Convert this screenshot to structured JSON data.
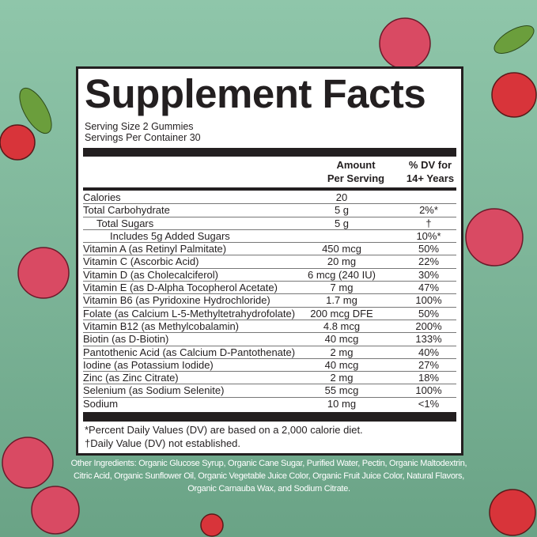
{
  "label": {
    "title": "Supplement Facts",
    "serving_size": "Serving Size 2 Gummies",
    "servings_per_container": "Servings Per Container 30",
    "header": {
      "amount": "Amount",
      "per_serving": "Per Serving",
      "dv": "% DV for",
      "years": "14+ Years"
    },
    "rows": [
      {
        "name": "Calories",
        "amount": "20",
        "dv": ""
      },
      {
        "name": "Total Carbohydrate",
        "amount": "5 g",
        "dv": "2%*"
      },
      {
        "name": "Total Sugars",
        "amount": "5 g",
        "dv": "†",
        "indent": 1
      },
      {
        "name": "Includes 5g Added Sugars",
        "amount": "",
        "dv": "10%*",
        "indent": 2
      },
      {
        "name": "Vitamin A (as Retinyl Palmitate)",
        "amount": "450 mcg",
        "dv": "50%"
      },
      {
        "name": "Vitamin C (Ascorbic Acid)",
        "amount": "20 mg",
        "dv": "22%"
      },
      {
        "name": "Vitamin D (as Cholecalciferol)",
        "amount": "6 mcg (240 IU)",
        "dv": "30%"
      },
      {
        "name": "Vitamin E (as D-Alpha Tocopherol Acetate)",
        "amount": "7 mg",
        "dv": "47%"
      },
      {
        "name": "Vitamin B6 (as Pyridoxine Hydrochloride)",
        "amount": "1.7 mg",
        "dv": "100%"
      },
      {
        "name": "Folate (as Calcium L-5-Methyltetrahydrofolate)",
        "amount": "200 mcg DFE",
        "dv": "50%"
      },
      {
        "name": "Vitamin B12 (as Methylcobalamin)",
        "amount": "4.8 mcg",
        "dv": "200%"
      },
      {
        "name": "Biotin (as D-Biotin)",
        "amount": "40 mcg",
        "dv": "133%"
      },
      {
        "name": "Pantothenic Acid (as Calcium D-Pantothenate)",
        "amount": "2 mg",
        "dv": "40%"
      },
      {
        "name": "Iodine (as Potassium Iodide)",
        "amount": "40 mcg",
        "dv": "27%"
      },
      {
        "name": "Zinc (as Zinc Citrate)",
        "amount": "2 mg",
        "dv": "18%"
      },
      {
        "name": "Selenium (as Sodium Selenite)",
        "amount": "55 mcg",
        "dv": "100%"
      },
      {
        "name": "Sodium",
        "amount": "10 mg",
        "dv": "<1%"
      }
    ],
    "footnote_1": "*Percent Daily Values (DV) are based on a 2,000 calorie diet.",
    "footnote_2": "†Daily Value (DV) not established."
  },
  "other_ingredients": "Other Ingredients: Organic Glucose Syrup, Organic Cane Sugar, Purified Water, Pectin, Organic Maltodextrin, Citric Acid, Organic Sunflower Oil, Organic Vegetable Juice Color, Organic Fruit Juice Color, Natural Flavors, Organic Carnauba Wax, and Sodium Citrate.",
  "colors": {
    "background": "#7db597",
    "cherry": "#d8343a",
    "raspberry": "#d94a63",
    "ink": "#231f20"
  }
}
